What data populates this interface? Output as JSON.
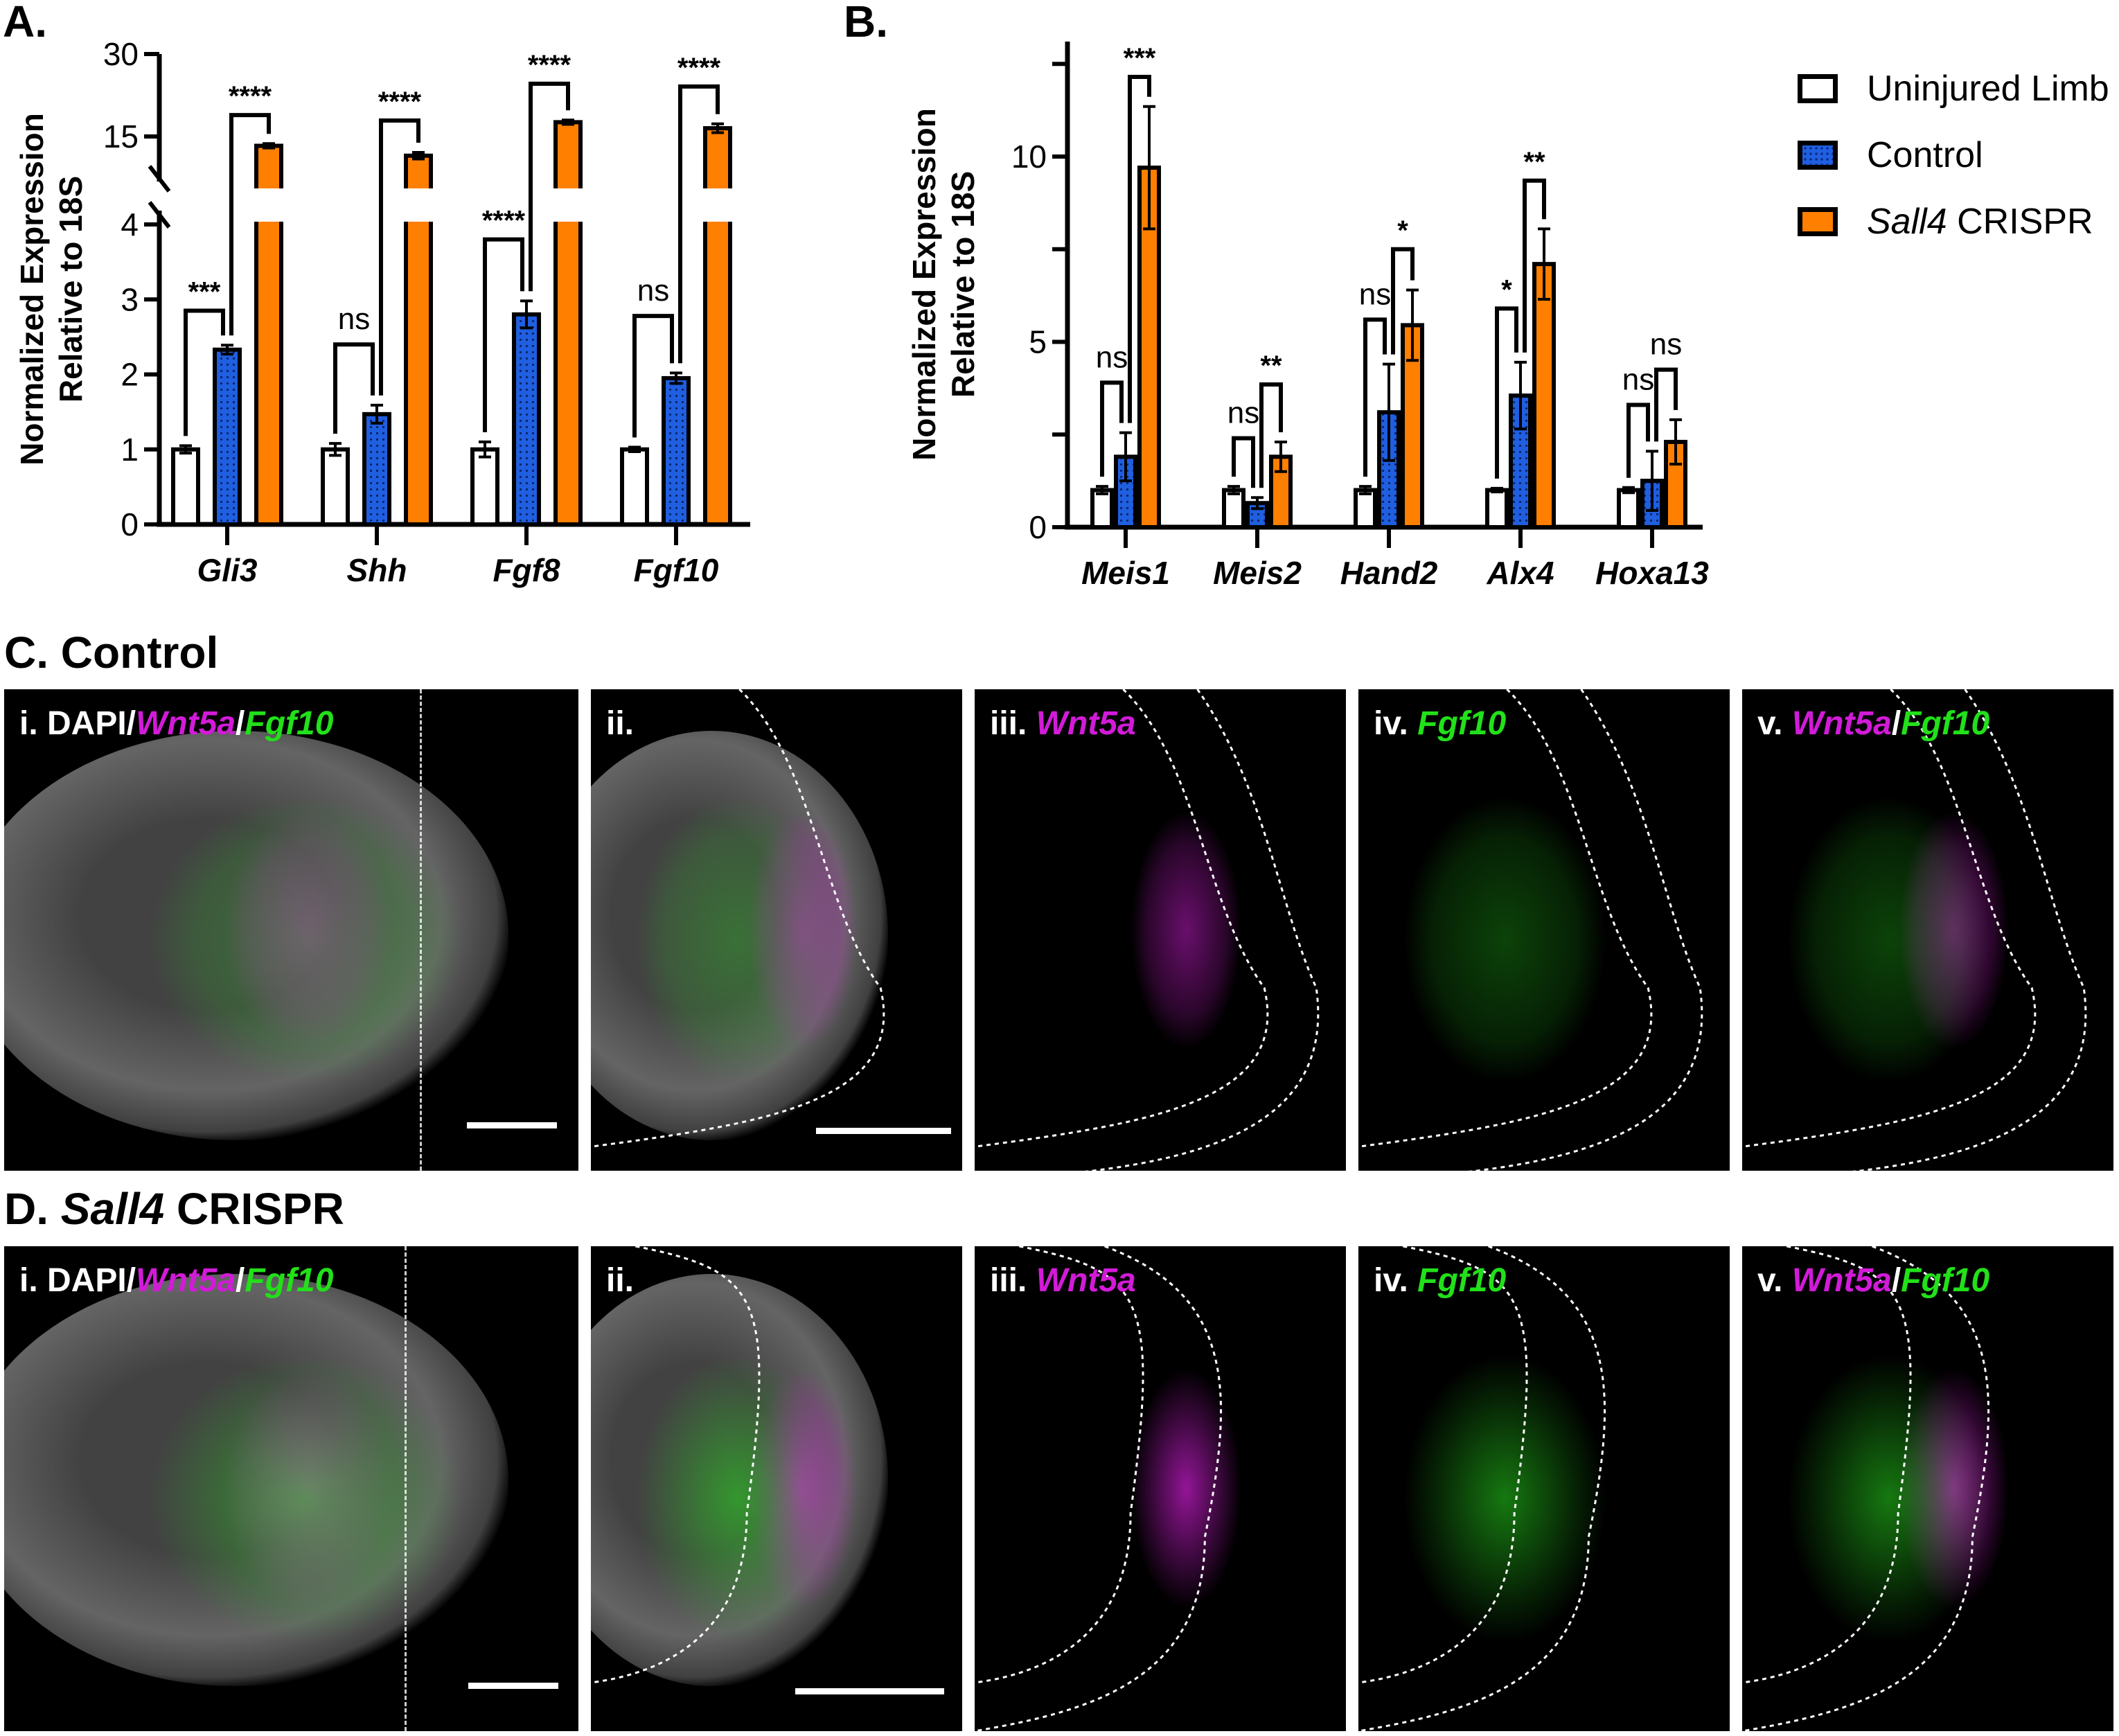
{
  "labels": {
    "a": "A.",
    "b": "B.",
    "c_prefix": "C.",
    "c_title": "Control",
    "d_prefix": "D.",
    "d_gene": "Sall4",
    "d_title": "CRISPR"
  },
  "legend": [
    {
      "label": "Uninjured Limb",
      "color": "#ffffff",
      "pattern": "none"
    },
    {
      "label": "Control",
      "color": "#1f5fe0",
      "pattern": "dots"
    },
    {
      "gene": "Sall4",
      "label": "CRISPR",
      "color": "#ff7f00",
      "pattern": "none"
    }
  ],
  "chart_data": [
    {
      "type": "bar",
      "id": "A",
      "ylabel": [
        "Normalized Expression",
        "Relative to 18S"
      ],
      "y_ticks": [
        "0",
        "1",
        "2",
        "3",
        "4",
        "15",
        "30"
      ],
      "ylim": [
        0,
        30
      ],
      "axis_break": [
        4,
        10
      ],
      "series": [
        "Uninjured Limb",
        "Control",
        "Sall4 CRISPR"
      ],
      "categories": [
        "Gli3",
        "Shh",
        "Fgf8",
        "Fgf10"
      ],
      "values": [
        [
          1.0,
          2.33,
          13.3
        ],
        [
          1.0,
          1.47,
          11.5
        ],
        [
          1.0,
          2.8,
          17.6
        ],
        [
          1.0,
          1.95,
          16.5
        ]
      ],
      "errors": [
        [
          0.05,
          0.06,
          0.4
        ],
        [
          0.08,
          0.12,
          0.6
        ],
        [
          0.1,
          0.18,
          0.4
        ],
        [
          0.03,
          0.07,
          0.8
        ]
      ],
      "significance": [
        [
          {
            "pair": [
              0,
              1
            ],
            "label": "***",
            "level": 2.85
          },
          {
            "pair": [
              1,
              2
            ],
            "label": "****",
            "level": 18.9
          }
        ],
        [
          {
            "pair": [
              0,
              1
            ],
            "label": "ns",
            "level": 2.4
          },
          {
            "pair": [
              1,
              2
            ],
            "label": "****",
            "level": 17.9
          }
        ],
        [
          {
            "pair": [
              0,
              1
            ],
            "label": "****",
            "level": 3.8
          },
          {
            "pair": [
              1,
              2
            ],
            "label": "****",
            "level": 24.6
          }
        ],
        [
          {
            "pair": [
              0,
              1
            ],
            "label": "ns",
            "level": 2.78
          },
          {
            "pair": [
              1,
              2
            ],
            "label": "****",
            "level": 24.1
          }
        ]
      ]
    },
    {
      "type": "bar",
      "id": "B",
      "ylabel": [
        "Normalized Expression",
        "Relative to 18S"
      ],
      "y_ticks": [
        "0",
        "5",
        "10"
      ],
      "ylim": [
        0,
        12.5
      ],
      "series": [
        "Uninjured Limb",
        "Control",
        "Sall4 CRISPR"
      ],
      "categories": [
        "Meis1",
        "Meis2",
        "Hand2",
        "Alx4",
        "Hoxa13"
      ],
      "values": [
        [
          1.0,
          1.9,
          9.7
        ],
        [
          1.0,
          0.65,
          1.9
        ],
        [
          1.0,
          3.1,
          5.45
        ],
        [
          1.0,
          3.55,
          7.1
        ],
        [
          1.0,
          1.25,
          2.3
        ]
      ],
      "errors": [
        [
          0.1,
          0.65,
          1.65
        ],
        [
          0.1,
          0.15,
          0.4
        ],
        [
          0.1,
          1.3,
          0.95
        ],
        [
          0.05,
          0.9,
          0.95
        ],
        [
          0.07,
          0.8,
          0.6
        ]
      ],
      "significance": [
        [
          {
            "pair": [
              0,
              1
            ],
            "label": "ns",
            "level": 3.9
          },
          {
            "pair": [
              1,
              2
            ],
            "label": "***",
            "level": 12.15
          }
        ],
        [
          {
            "pair": [
              0,
              1
            ],
            "label": "ns",
            "level": 2.4
          },
          {
            "pair": [
              1,
              2
            ],
            "label": "**",
            "level": 3.85
          }
        ],
        [
          {
            "pair": [
              0,
              1
            ],
            "label": "ns",
            "level": 5.6
          },
          {
            "pair": [
              1,
              2
            ],
            "label": "*",
            "level": 7.5
          }
        ],
        [
          {
            "pair": [
              0,
              1
            ],
            "label": "*",
            "level": 5.9
          },
          {
            "pair": [
              1,
              2
            ],
            "label": "**",
            "level": 9.35
          }
        ],
        [
          {
            "pair": [
              0,
              1
            ],
            "label": "ns",
            "level": 3.3
          },
          {
            "pair": [
              1,
              2
            ],
            "label": "ns",
            "level": 4.25
          }
        ]
      ]
    }
  ],
  "panels": {
    "c": [
      {
        "num": "i.",
        "dapi": "DAPI/",
        "wnt": "Wnt5a",
        "sep": "/",
        "fgf": "Fgf10"
      },
      {
        "num": "ii."
      },
      {
        "num": "iii.",
        "wnt": "Wnt5a"
      },
      {
        "num": "iv.",
        "fgf": "Fgf10"
      },
      {
        "num": "v.",
        "wnt": "Wnt5a",
        "sep": "/",
        "fgf": "Fgf10"
      }
    ],
    "d": [
      {
        "num": "i.",
        "dapi": "DAPI/",
        "wnt": "Wnt5a",
        "sep": "/",
        "fgf": "Fgf10"
      },
      {
        "num": "ii."
      },
      {
        "num": "iii.",
        "wnt": "Wnt5a"
      },
      {
        "num": "iv.",
        "fgf": "Fgf10"
      },
      {
        "num": "v.",
        "wnt": "Wnt5a",
        "sep": "/",
        "fgf": "Fgf10"
      }
    ]
  }
}
